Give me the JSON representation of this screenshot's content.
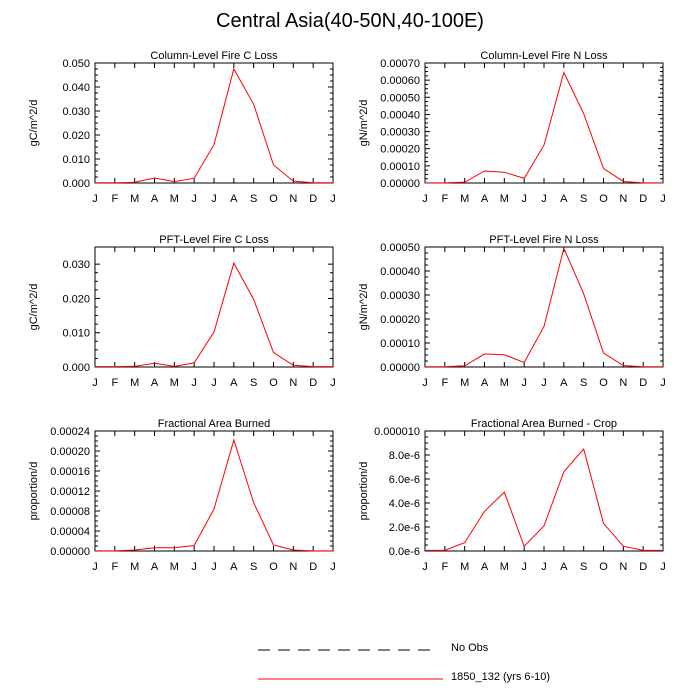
{
  "page": {
    "title": "Central Asia(40-50N,40-100E)"
  },
  "legend": {
    "items": [
      {
        "label": "No Obs",
        "color": "#000000",
        "style": "dashed"
      },
      {
        "label": "1850_132 (yrs 6-10)",
        "color": "#ff0000",
        "style": "solid"
      }
    ]
  },
  "chart_data": [
    {
      "type": "line",
      "title": "Column-Level Fire C Loss",
      "ylabel": "gC/m^2/d",
      "x": [
        "J",
        "F",
        "M",
        "A",
        "M",
        "J",
        "J",
        "A",
        "S",
        "O",
        "N",
        "D",
        "J"
      ],
      "ylim": [
        0,
        0.05
      ],
      "yticks": [
        "0.000",
        "0.010",
        "0.020",
        "0.030",
        "0.040",
        "0.050"
      ],
      "ytick_values": [
        0,
        0.01,
        0.02,
        0.03,
        0.04,
        0.05
      ],
      "series": [
        {
          "name": "1850_132 (yrs 6-10)",
          "color": "#ff0000",
          "values": [
            0.0001,
            0.0001,
            0.0003,
            0.0021,
            0.0006,
            0.002,
            0.016,
            0.0475,
            0.0328,
            0.0075,
            0.0008,
            0.0001,
            0.0001
          ]
        }
      ]
    },
    {
      "type": "line",
      "title": "Column-Level Fire N Loss",
      "ylabel": "gN/m^2/d",
      "x": [
        "J",
        "F",
        "M",
        "A",
        "M",
        "J",
        "J",
        "A",
        "S",
        "O",
        "N",
        "D",
        "J"
      ],
      "ylim": [
        0,
        0.0007
      ],
      "yticks": [
        "0.00000",
        "0.00010",
        "0.00020",
        "0.00030",
        "0.00040",
        "0.00050",
        "0.00060",
        "0.00070"
      ],
      "ytick_values": [
        0,
        0.0001,
        0.0002,
        0.0003,
        0.0004,
        0.0005,
        0.0006,
        0.0007
      ],
      "series": [
        {
          "name": "1850_132 (yrs 6-10)",
          "color": "#ff0000",
          "values": [
            1e-06,
            1e-06,
            5e-06,
            7e-05,
            6.3e-05,
            2.7e-05,
            0.000221,
            0.000645,
            0.000404,
            8.5e-05,
            9e-06,
            1e-06,
            1e-06
          ]
        }
      ]
    },
    {
      "type": "line",
      "title": "PFT-Level Fire C Loss",
      "ylabel": "gC/m^2/d",
      "x": [
        "J",
        "F",
        "M",
        "A",
        "M",
        "J",
        "J",
        "A",
        "S",
        "O",
        "N",
        "D",
        "J"
      ],
      "ylim": [
        0,
        0.035
      ],
      "yticks": [
        "0.000",
        "0.010",
        "0.020",
        "0.030"
      ],
      "ytick_values": [
        0,
        0.01,
        0.02,
        0.03
      ],
      "series": [
        {
          "name": "1850_132 (yrs 6-10)",
          "color": "#ff0000",
          "values": [
            0.0001,
            0.0001,
            0.0002,
            0.0011,
            0.0002,
            0.0012,
            0.0102,
            0.0303,
            0.0197,
            0.0042,
            0.0005,
            0.0001,
            0.0001
          ]
        }
      ]
    },
    {
      "type": "line",
      "title": "PFT-Level Fire N Loss",
      "ylabel": "gN/m^2/d",
      "x": [
        "J",
        "F",
        "M",
        "A",
        "M",
        "J",
        "J",
        "A",
        "S",
        "O",
        "N",
        "D",
        "J"
      ],
      "ylim": [
        0,
        0.0005
      ],
      "yticks": [
        "0.00000",
        "0.00010",
        "0.00020",
        "0.00030",
        "0.00040",
        "0.00050"
      ],
      "ytick_values": [
        0,
        0.0001,
        0.0002,
        0.0003,
        0.0004,
        0.0005
      ],
      "series": [
        {
          "name": "1850_132 (yrs 6-10)",
          "color": "#ff0000",
          "values": [
            1e-06,
            1e-06,
            5e-06,
            5.4e-05,
            5.1e-05,
            1.9e-05,
            0.000169,
            0.000495,
            0.000305,
            5.8e-05,
            6e-06,
            1e-06,
            1e-06
          ]
        }
      ]
    },
    {
      "type": "line",
      "title": "Fractional Area Burned",
      "ylabel": "proportion/d",
      "x": [
        "J",
        "F",
        "M",
        "A",
        "M",
        "J",
        "J",
        "A",
        "S",
        "O",
        "N",
        "D",
        "J"
      ],
      "ylim": [
        0,
        0.00024
      ],
      "yticks": [
        "0.00000",
        "0.00004",
        "0.00008",
        "0.00012",
        "0.00016",
        "0.00020",
        "0.00024"
      ],
      "ytick_values": [
        0,
        4e-05,
        8e-05,
        0.00012,
        0.00016,
        0.0002,
        0.00024
      ],
      "series": [
        {
          "name": "1850_132 (yrs 6-10)",
          "color": "#ff0000",
          "values": [
            2e-07,
            2e-07,
            2e-06,
            6.5e-06,
            6.5e-06,
            1.1e-05,
            8.4e-05,
            0.000222,
            9.65e-05,
            1.2e-05,
            2e-06,
            2e-07,
            2e-07
          ]
        }
      ]
    },
    {
      "type": "line",
      "title": "Fractional Area Burned - Crop",
      "ylabel": "proportion/d",
      "x": [
        "J",
        "F",
        "M",
        "A",
        "M",
        "J",
        "J",
        "A",
        "S",
        "O",
        "N",
        "D",
        "J"
      ],
      "ylim": [
        0,
        1e-05
      ],
      "yticks": [
        "0.0e-6",
        "2.0e-6",
        "4.0e-6",
        "6.0e-6",
        "8.0e-6",
        "0.000010"
      ],
      "ytick_values": [
        0,
        2e-06,
        4e-06,
        6e-06,
        8e-06,
        1e-05
      ],
      "series": [
        {
          "name": "1850_132 (yrs 6-10)",
          "color": "#ff0000",
          "values": [
            5e-08,
            5e-08,
            7e-07,
            3.3e-06,
            4.9e-06,
            4e-07,
            2.1e-06,
            6.6e-06,
            8.5e-06,
            2.3e-06,
            4e-07,
            5e-08,
            5e-08
          ]
        }
      ]
    }
  ]
}
